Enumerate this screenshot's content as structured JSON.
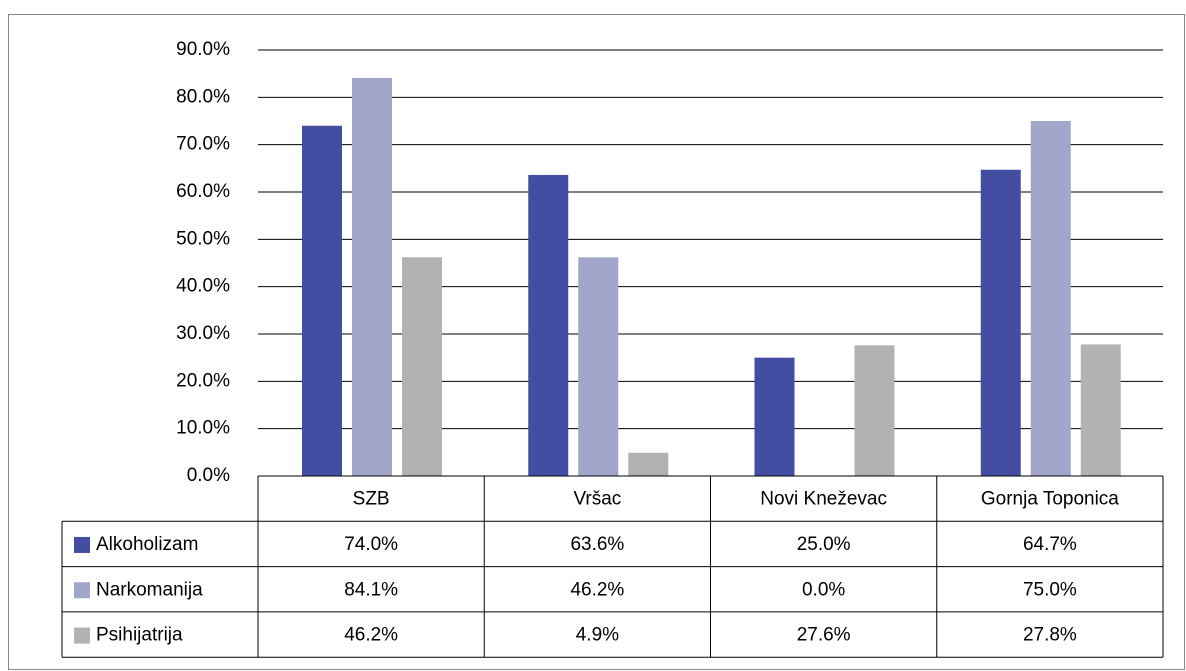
{
  "chart_data": {
    "type": "bar",
    "categories": [
      "SZB",
      "Vršac",
      "Novi Kneževac",
      "Gornja Toponica"
    ],
    "series": [
      {
        "name": "Alkoholizam",
        "color": "#434ea3",
        "values": [
          74.0,
          63.6,
          25.0,
          64.7
        ],
        "value_labels": [
          "74.0%",
          "63.6%",
          "25.0%",
          "64.7%"
        ]
      },
      {
        "name": "Narkomanija",
        "color": "#a2a6cb",
        "values": [
          84.1,
          46.2,
          0.0,
          75.0
        ],
        "value_labels": [
          "84.1%",
          "46.2%",
          "0.0%",
          "75.0%"
        ]
      },
      {
        "name": "Psihijatrija",
        "color": "#b2b2b2",
        "values": [
          46.2,
          4.9,
          27.6,
          27.8
        ],
        "value_labels": [
          "46.2%",
          "4.9%",
          "27.6%",
          "27.8%"
        ]
      }
    ],
    "ylim": [
      0,
      90
    ],
    "yticks": [
      {
        "value": 0,
        "label": "0.0%"
      },
      {
        "value": 10,
        "label": "10.0%"
      },
      {
        "value": 20,
        "label": "20.0%"
      },
      {
        "value": 30,
        "label": "30.0%"
      },
      {
        "value": 40,
        "label": "40.0%"
      },
      {
        "value": 50,
        "label": "50.0%"
      },
      {
        "value": 60,
        "label": "60.0%"
      },
      {
        "value": 70,
        "label": "70.0%"
      },
      {
        "value": 80,
        "label": "80.0%"
      },
      {
        "value": 90,
        "label": "90.0%"
      }
    ],
    "grid": true
  }
}
